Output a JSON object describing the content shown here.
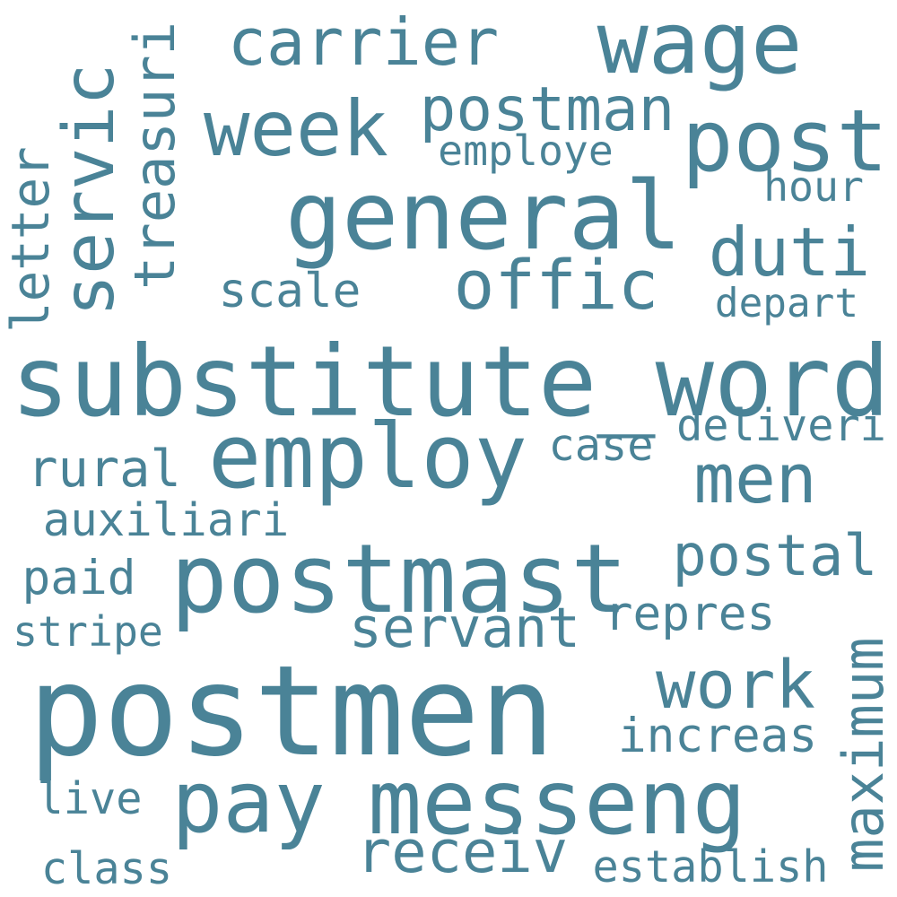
{
  "word_cloud": {
    "color": "#4a8397",
    "background": "#ffffff",
    "words": [
      "postmen",
      "substitute_word",
      "postmast",
      "messeng",
      "general",
      "employ",
      "offic",
      "carrier",
      "wage",
      "week",
      "post",
      "servic",
      "duti",
      "pay",
      "men",
      "work",
      "receiv",
      "postman",
      "postal",
      "servant",
      "rural",
      "treasuri",
      "scale",
      "letter",
      "increas",
      "maximum",
      "auxiliari",
      "paid",
      "repres",
      "case",
      "deliveri",
      "establish",
      "depart",
      "employe",
      "hour",
      "stripe",
      "live",
      "class"
    ]
  }
}
